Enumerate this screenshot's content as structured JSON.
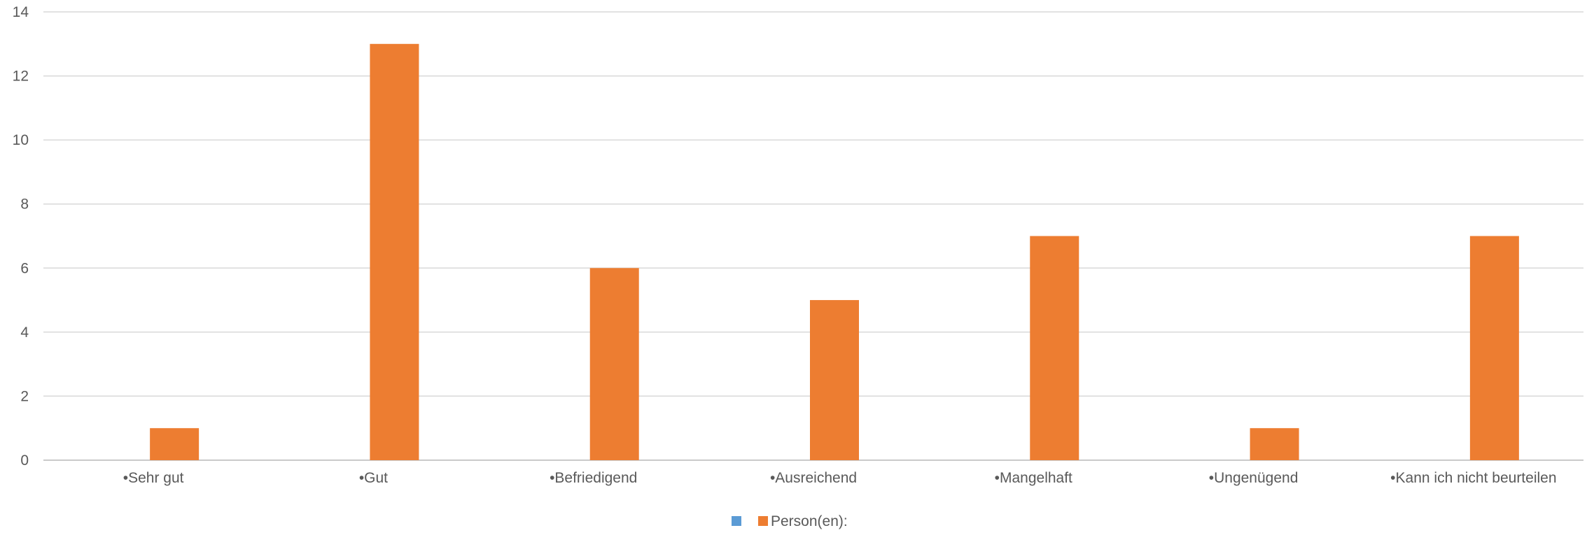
{
  "chart_data": {
    "type": "bar",
    "title": "",
    "xlabel": "",
    "ylabel": "",
    "categories": [
      "•Sehr gut",
      "•Gut",
      "•Befriedigend",
      "•Ausreichend",
      "•Mangelhaft",
      "•Ungenügend",
      "•Kann ich nicht beurteilen"
    ],
    "series": [
      {
        "name": "",
        "color": "#5B9BD5",
        "values": [
          0,
          0,
          0,
          0,
          0,
          0,
          0
        ]
      },
      {
        "name": "Person(en):",
        "color": "#ED7D31",
        "values": [
          1,
          13,
          6,
          5,
          7,
          1,
          7
        ]
      }
    ],
    "ylim": [
      0,
      14
    ],
    "yticks": [
      0,
      2,
      4,
      6,
      8,
      10,
      12,
      14
    ],
    "grid": true,
    "legend_position": "bottom",
    "gridline_color": "#D9D9D9",
    "text_color": "#595959"
  }
}
